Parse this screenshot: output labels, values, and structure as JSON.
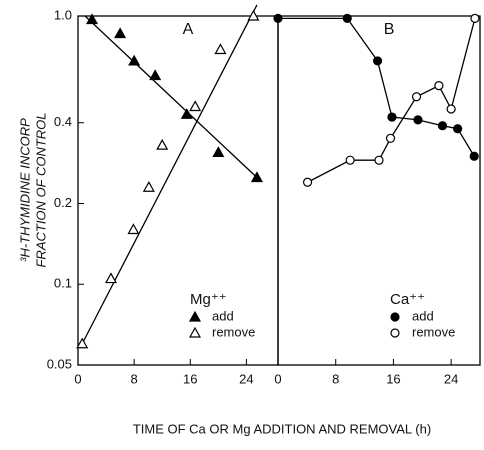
{
  "chart_data": {
    "type": "line",
    "yscale": "log",
    "ylabel": [
      "³H-THYMIDINE INCORP",
      "FRACTION OF CONTROL"
    ],
    "xlabel": "TIME OF Ca OR Mg ADDITION AND REMOVAL (h)",
    "ylim": [
      0.05,
      1.0
    ],
    "yticks": [
      {
        "value": 1.0,
        "label": "1.0"
      },
      0.4,
      0.2,
      0.1,
      0.05
    ],
    "panels": [
      {
        "label": "A",
        "xlim": [
          0,
          28.5
        ],
        "xticks": [
          0,
          8,
          16,
          24
        ],
        "legend_title": "Mg⁺⁺",
        "line": "fit",
        "series": [
          {
            "name": "add",
            "marker": "triangle",
            "filled": true,
            "color": "#000000",
            "x": [
              2,
              6,
              8,
              11,
              15.5,
              20,
              25.5
            ],
            "values": [
              0.97,
              0.86,
              0.68,
              0.6,
              0.43,
              0.31,
              0.25
            ],
            "fit": {
              "x": [
                1,
                25.5
              ],
              "values": [
                1.0,
                0.25
              ]
            }
          },
          {
            "name": "remove",
            "marker": "triangle",
            "filled": false,
            "color": "#000000",
            "x": [
              0.6,
              4.7,
              7.9,
              10.1,
              12,
              16.7,
              20.3,
              25
            ],
            "values": [
              0.06,
              0.105,
              0.16,
              0.23,
              0.33,
              0.46,
              0.75,
              1.0
            ],
            "fit": {
              "x": [
                0.6,
                25.5
              ],
              "values": [
                0.06,
                1.1
              ]
            }
          }
        ]
      },
      {
        "label": "B",
        "xlim": [
          0,
          28
        ],
        "xticks": [
          0,
          8,
          16,
          24
        ],
        "legend_title": "Ca⁺⁺",
        "line": "connect",
        "series": [
          {
            "name": "add",
            "marker": "circle",
            "filled": true,
            "color": "#000000",
            "x": [
              0,
              9.6,
              13.8,
              15.8,
              19.4,
              22.8,
              24.9,
              27.2
            ],
            "values": [
              0.98,
              0.98,
              0.68,
              0.42,
              0.41,
              0.39,
              0.38,
              0.3
            ]
          },
          {
            "name": "remove",
            "marker": "circle",
            "filled": false,
            "color": "#000000",
            "x": [
              4.1,
              10,
              14,
              15.6,
              19.2,
              22.3,
              24,
              27.3
            ],
            "values": [
              0.24,
              0.29,
              0.29,
              0.35,
              0.5,
              0.55,
              0.45,
              0.98
            ]
          }
        ]
      }
    ]
  }
}
